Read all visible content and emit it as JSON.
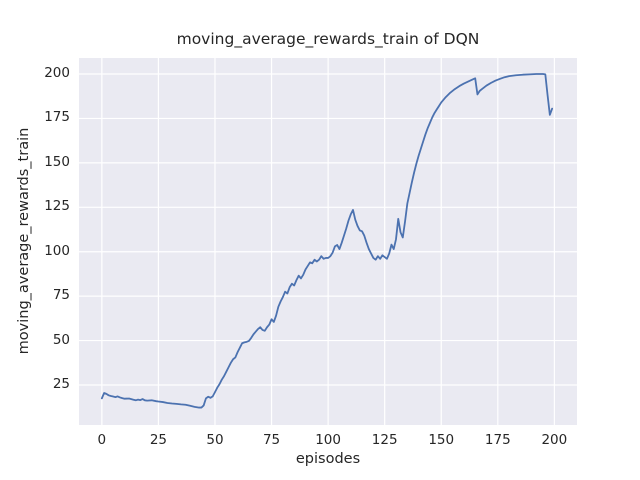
{
  "chart_data": {
    "type": "line",
    "title": "moving_average_rewards_train of DQN",
    "xlabel": "episodes",
    "ylabel": "moving_average_rewards_train",
    "xlim": [
      -10.1,
      210.0
    ],
    "ylim": [
      2.5,
      209.0
    ],
    "xticks": [
      0,
      25,
      50,
      75,
      100,
      125,
      150,
      175,
      200
    ],
    "yticks": [
      25,
      50,
      75,
      100,
      125,
      150,
      175,
      200
    ],
    "grid": true,
    "legend": "none",
    "plot_bg_color": "#eaeaf2",
    "grid_color": "#ffffff",
    "line_color": "#4c72b0",
    "text_color": "#262626",
    "series": [
      {
        "name": "moving_average_rewards_train",
        "x": [
          0,
          1,
          2,
          3,
          4,
          5,
          6,
          7,
          8,
          9,
          10,
          12,
          14,
          15,
          16,
          17,
          18,
          19,
          20,
          22,
          24,
          25,
          27,
          29,
          31,
          33,
          35,
          37,
          39,
          41,
          43,
          44,
          45,
          46,
          47,
          48,
          49,
          50,
          51,
          52,
          53,
          54,
          55,
          56,
          57,
          58,
          59,
          60,
          61,
          62,
          63,
          64,
          65,
          66,
          67,
          68,
          69,
          70,
          71,
          72,
          73,
          74,
          75,
          76,
          77,
          78,
          79,
          80,
          81,
          82,
          83,
          84,
          85,
          86,
          87,
          88,
          89,
          90,
          91,
          92,
          93,
          94,
          95,
          96,
          97,
          98,
          99,
          100,
          101,
          102,
          103,
          104,
          105,
          106,
          107,
          108,
          109,
          110,
          111,
          112,
          113,
          114,
          115,
          116,
          117,
          118,
          119,
          120,
          121,
          122,
          123,
          124,
          125,
          126,
          127,
          128,
          129,
          130,
          131,
          132,
          133,
          134,
          135,
          136,
          137,
          138,
          139,
          140,
          141,
          142,
          143,
          144,
          145,
          146,
          147,
          148,
          149,
          150,
          152,
          154,
          156,
          158,
          160,
          162,
          164,
          165,
          166,
          167,
          168,
          170,
          172,
          174,
          176,
          178,
          180,
          183,
          186,
          189,
          192,
          195,
          196,
          197,
          198,
          199
        ],
        "y": [
          17.5,
          20.5,
          20.0,
          19.2,
          18.8,
          18.5,
          18.2,
          18.6,
          18.0,
          17.6,
          17.3,
          17.4,
          16.7,
          16.4,
          16.8,
          16.5,
          17.1,
          16.4,
          16.2,
          16.4,
          15.9,
          15.7,
          15.4,
          14.9,
          14.6,
          14.4,
          14.1,
          13.9,
          13.3,
          12.7,
          12.3,
          12.3,
          13.5,
          17.5,
          18.4,
          17.8,
          18.6,
          21.0,
          23.5,
          25.5,
          28.0,
          30.0,
          32.5,
          35.0,
          37.5,
          39.5,
          40.5,
          43.5,
          46.0,
          48.5,
          49.0,
          49.3,
          49.8,
          51.5,
          53.5,
          55.0,
          56.5,
          57.5,
          56.0,
          55.5,
          57.5,
          59.0,
          62.0,
          60.5,
          64.0,
          69.0,
          72.0,
          74.5,
          77.5,
          76.5,
          80.0,
          82.0,
          81.0,
          84.0,
          86.5,
          85.0,
          87.0,
          90.0,
          92.0,
          94.0,
          93.5,
          95.5,
          94.5,
          95.5,
          97.5,
          96.0,
          96.5,
          96.5,
          97.5,
          99.5,
          103.0,
          103.8,
          101.5,
          105.0,
          109.0,
          113.0,
          117.5,
          121.0,
          123.5,
          118.0,
          114.5,
          112.0,
          111.5,
          109.0,
          105.0,
          101.5,
          99.0,
          96.5,
          95.5,
          97.5,
          96.0,
          98.0,
          97.0,
          96.0,
          99.0,
          104.0,
          101.5,
          107.0,
          118.5,
          111.0,
          108.0,
          117.0,
          127.0,
          133.0,
          139.0,
          144.5,
          149.5,
          154.0,
          158.0,
          162.0,
          166.0,
          169.5,
          172.5,
          175.5,
          178.0,
          180.0,
          182.0,
          184.0,
          187.0,
          189.5,
          191.5,
          193.2,
          194.6,
          195.8,
          197.0,
          197.6,
          188.5,
          190.5,
          191.5,
          193.5,
          195.0,
          196.3,
          197.3,
          198.2,
          198.8,
          199.3,
          199.6,
          199.8,
          200.0,
          200.0,
          199.8,
          188.0,
          177.0,
          180.5
        ]
      }
    ]
  }
}
